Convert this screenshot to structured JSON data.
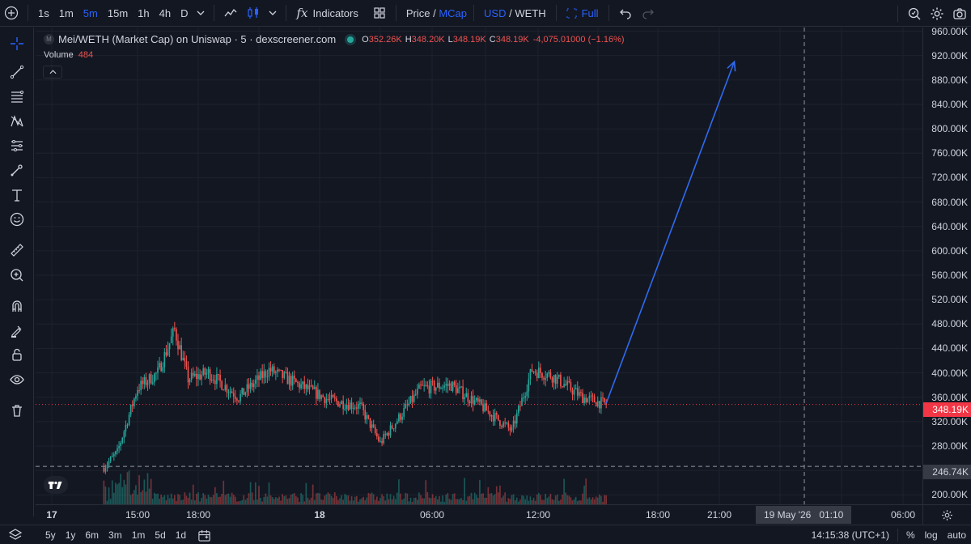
{
  "toolbar": {
    "intervals": [
      {
        "label": "1s",
        "active": false
      },
      {
        "label": "1m",
        "active": false
      },
      {
        "label": "5m",
        "active": true
      },
      {
        "label": "15m",
        "active": false
      },
      {
        "label": "1h",
        "active": false
      },
      {
        "label": "4h",
        "active": false
      },
      {
        "label": "D",
        "active": false
      }
    ],
    "indicators_label": "Indicators",
    "price_label": "Price",
    "slash": " / ",
    "mcap_label": "MCap",
    "usd_label": "USD",
    "weth_label": "WETH",
    "full_label": "Full"
  },
  "legend": {
    "symbol_badge": "M",
    "title": "Mei/WETH (Market Cap) on Uniswap · 5 · dexscreener.com",
    "o_key": "O",
    "o_val": "352.26K",
    "h_key": "H",
    "h_val": "348.20K",
    "l_key": "L",
    "l_val": "348.19K",
    "c_key": "C",
    "c_val": "348.19K",
    "change": "-4,075.01000 (−1.16%)",
    "volume_label": "Volume",
    "volume_value": "484"
  },
  "price_axis": {
    "labels": [
      "960.00K",
      "920.00K",
      "880.00K",
      "840.00K",
      "800.00K",
      "760.00K",
      "720.00K",
      "680.00K",
      "640.00K",
      "600.00K",
      "560.00K",
      "520.00K",
      "480.00K",
      "440.00K",
      "400.00K",
      "360.00K",
      "320.00K",
      "280.00K",
      "240.00K",
      "200.00K"
    ],
    "current_price": "348.19K",
    "crosshair_price": "246.74K"
  },
  "time_axis": {
    "labels": [
      "17",
      "15:00",
      "18:00",
      "18",
      "06:00",
      "12:00",
      "18:00",
      "21:00",
      "06:00"
    ],
    "crosshair_time": "19 May '26   01:10"
  },
  "bottom": {
    "ranges": [
      "5y",
      "1y",
      "6m",
      "3m",
      "1m",
      "5d",
      "1d"
    ],
    "clock": "14:15:38 (UTC+1)",
    "percent": "%",
    "log": "log",
    "auto": "auto"
  },
  "colors": {
    "up": "#26a69a",
    "down": "#ef5350",
    "accent": "#2962ff",
    "arrow": "#2f6bef",
    "price_line": "#f23645"
  },
  "chart_data": {
    "type": "candlestick",
    "series_name": "Mei/WETH (Market Cap)",
    "interval": "5m",
    "y_unit": "USD",
    "ylim": [
      200000,
      960000
    ],
    "x_ticks": [
      "17",
      "15:00",
      "18:00",
      "18",
      "06:00",
      "12:00",
      "18:00",
      "21:00",
      "06:00"
    ],
    "close_path": [
      {
        "t": "17 13:20",
        "close": 245000
      },
      {
        "t": "17 14:00",
        "close": 270000
      },
      {
        "t": "17 15:00",
        "close": 375000
      },
      {
        "t": "17 16:00",
        "close": 400000
      },
      {
        "t": "17 16:50",
        "close": 470000
      },
      {
        "t": "17 17:30",
        "close": 390000
      },
      {
        "t": "17 18:30",
        "close": 400000
      },
      {
        "t": "17 20:00",
        "close": 360000
      },
      {
        "t": "17 21:30",
        "close": 405000
      },
      {
        "t": "17 23:00",
        "close": 380000
      },
      {
        "t": "18 00:30",
        "close": 355000
      },
      {
        "t": "18 02:00",
        "close": 345000
      },
      {
        "t": "18 03:00",
        "close": 285000
      },
      {
        "t": "18 05:00",
        "close": 375000
      },
      {
        "t": "18 06:30",
        "close": 380000
      },
      {
        "t": "18 08:00",
        "close": 345000
      },
      {
        "t": "18 09:30",
        "close": 305000
      },
      {
        "t": "18 10:30",
        "close": 405000
      },
      {
        "t": "18 11:30",
        "close": 395000
      },
      {
        "t": "18 13:00",
        "close": 360000
      },
      {
        "t": "18 14:10",
        "close": 348190
      }
    ],
    "current_price": 348190,
    "crosshair": {
      "price": 246740,
      "time": "19 May '26 01:10"
    },
    "projection_arrow": {
      "from": {
        "t": "18 14:10",
        "value": 350000
      },
      "to": {
        "t": "18 20:30",
        "value": 910000
      }
    }
  }
}
